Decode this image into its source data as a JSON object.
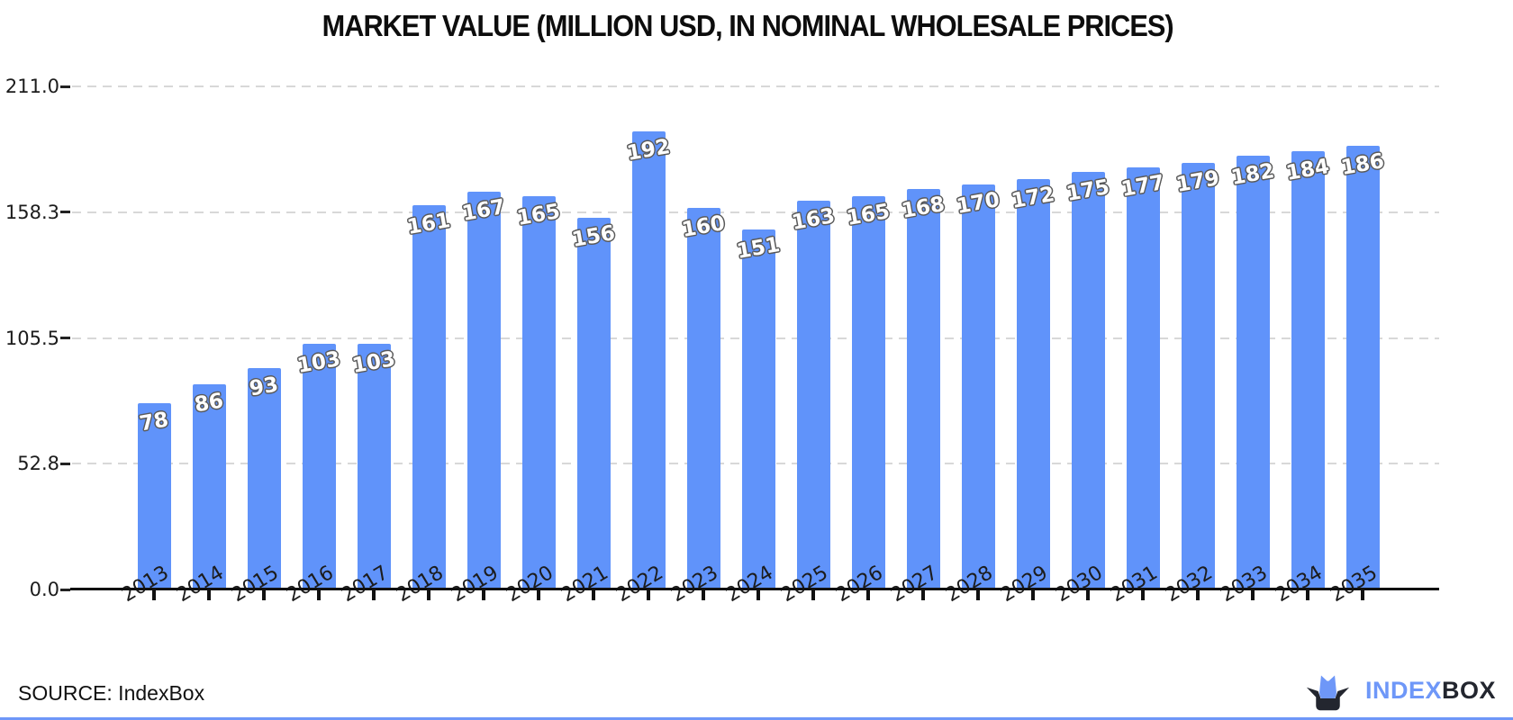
{
  "chart_data": {
    "type": "bar",
    "title": "MARKET VALUE (MILLION USD, IN NOMINAL WHOLESALE PRICES)",
    "categories": [
      "2013",
      "2014",
      "2015",
      "2016",
      "2017",
      "2018",
      "2019",
      "2020",
      "2021",
      "2022",
      "2023",
      "2024",
      "2025",
      "2026",
      "2027",
      "2028",
      "2029",
      "2030",
      "2031",
      "2032",
      "2033",
      "2034",
      "2035"
    ],
    "values": [
      78,
      86,
      93,
      103,
      103,
      161,
      167,
      165,
      156,
      192,
      160,
      151,
      163,
      165,
      168,
      170,
      172,
      175,
      177,
      179,
      182,
      184,
      186
    ],
    "xlabel": "",
    "ylabel": "",
    "ylim": [
      0,
      211
    ],
    "y_ticks": [
      0.0,
      52.8,
      105.5,
      158.3,
      211.0
    ],
    "y_tick_labels": [
      "0.0",
      "52.8",
      "105.5",
      "158.3",
      "211.0"
    ],
    "grid": "horizontal-dashed",
    "legend": "none",
    "colors": {
      "bar": "#6093fa",
      "value_label_text": "#ffffff",
      "value_label_outline": "#595959",
      "gridline": "#d8d8d8",
      "axis": "#111111"
    }
  },
  "footer": {
    "source": "SOURCE: IndexBox",
    "logo": {
      "icon": "cat-in-box",
      "index_label": "INDEX",
      "box_label": "BOX",
      "blue": "#6e97f8",
      "dark": "#23262f"
    }
  }
}
